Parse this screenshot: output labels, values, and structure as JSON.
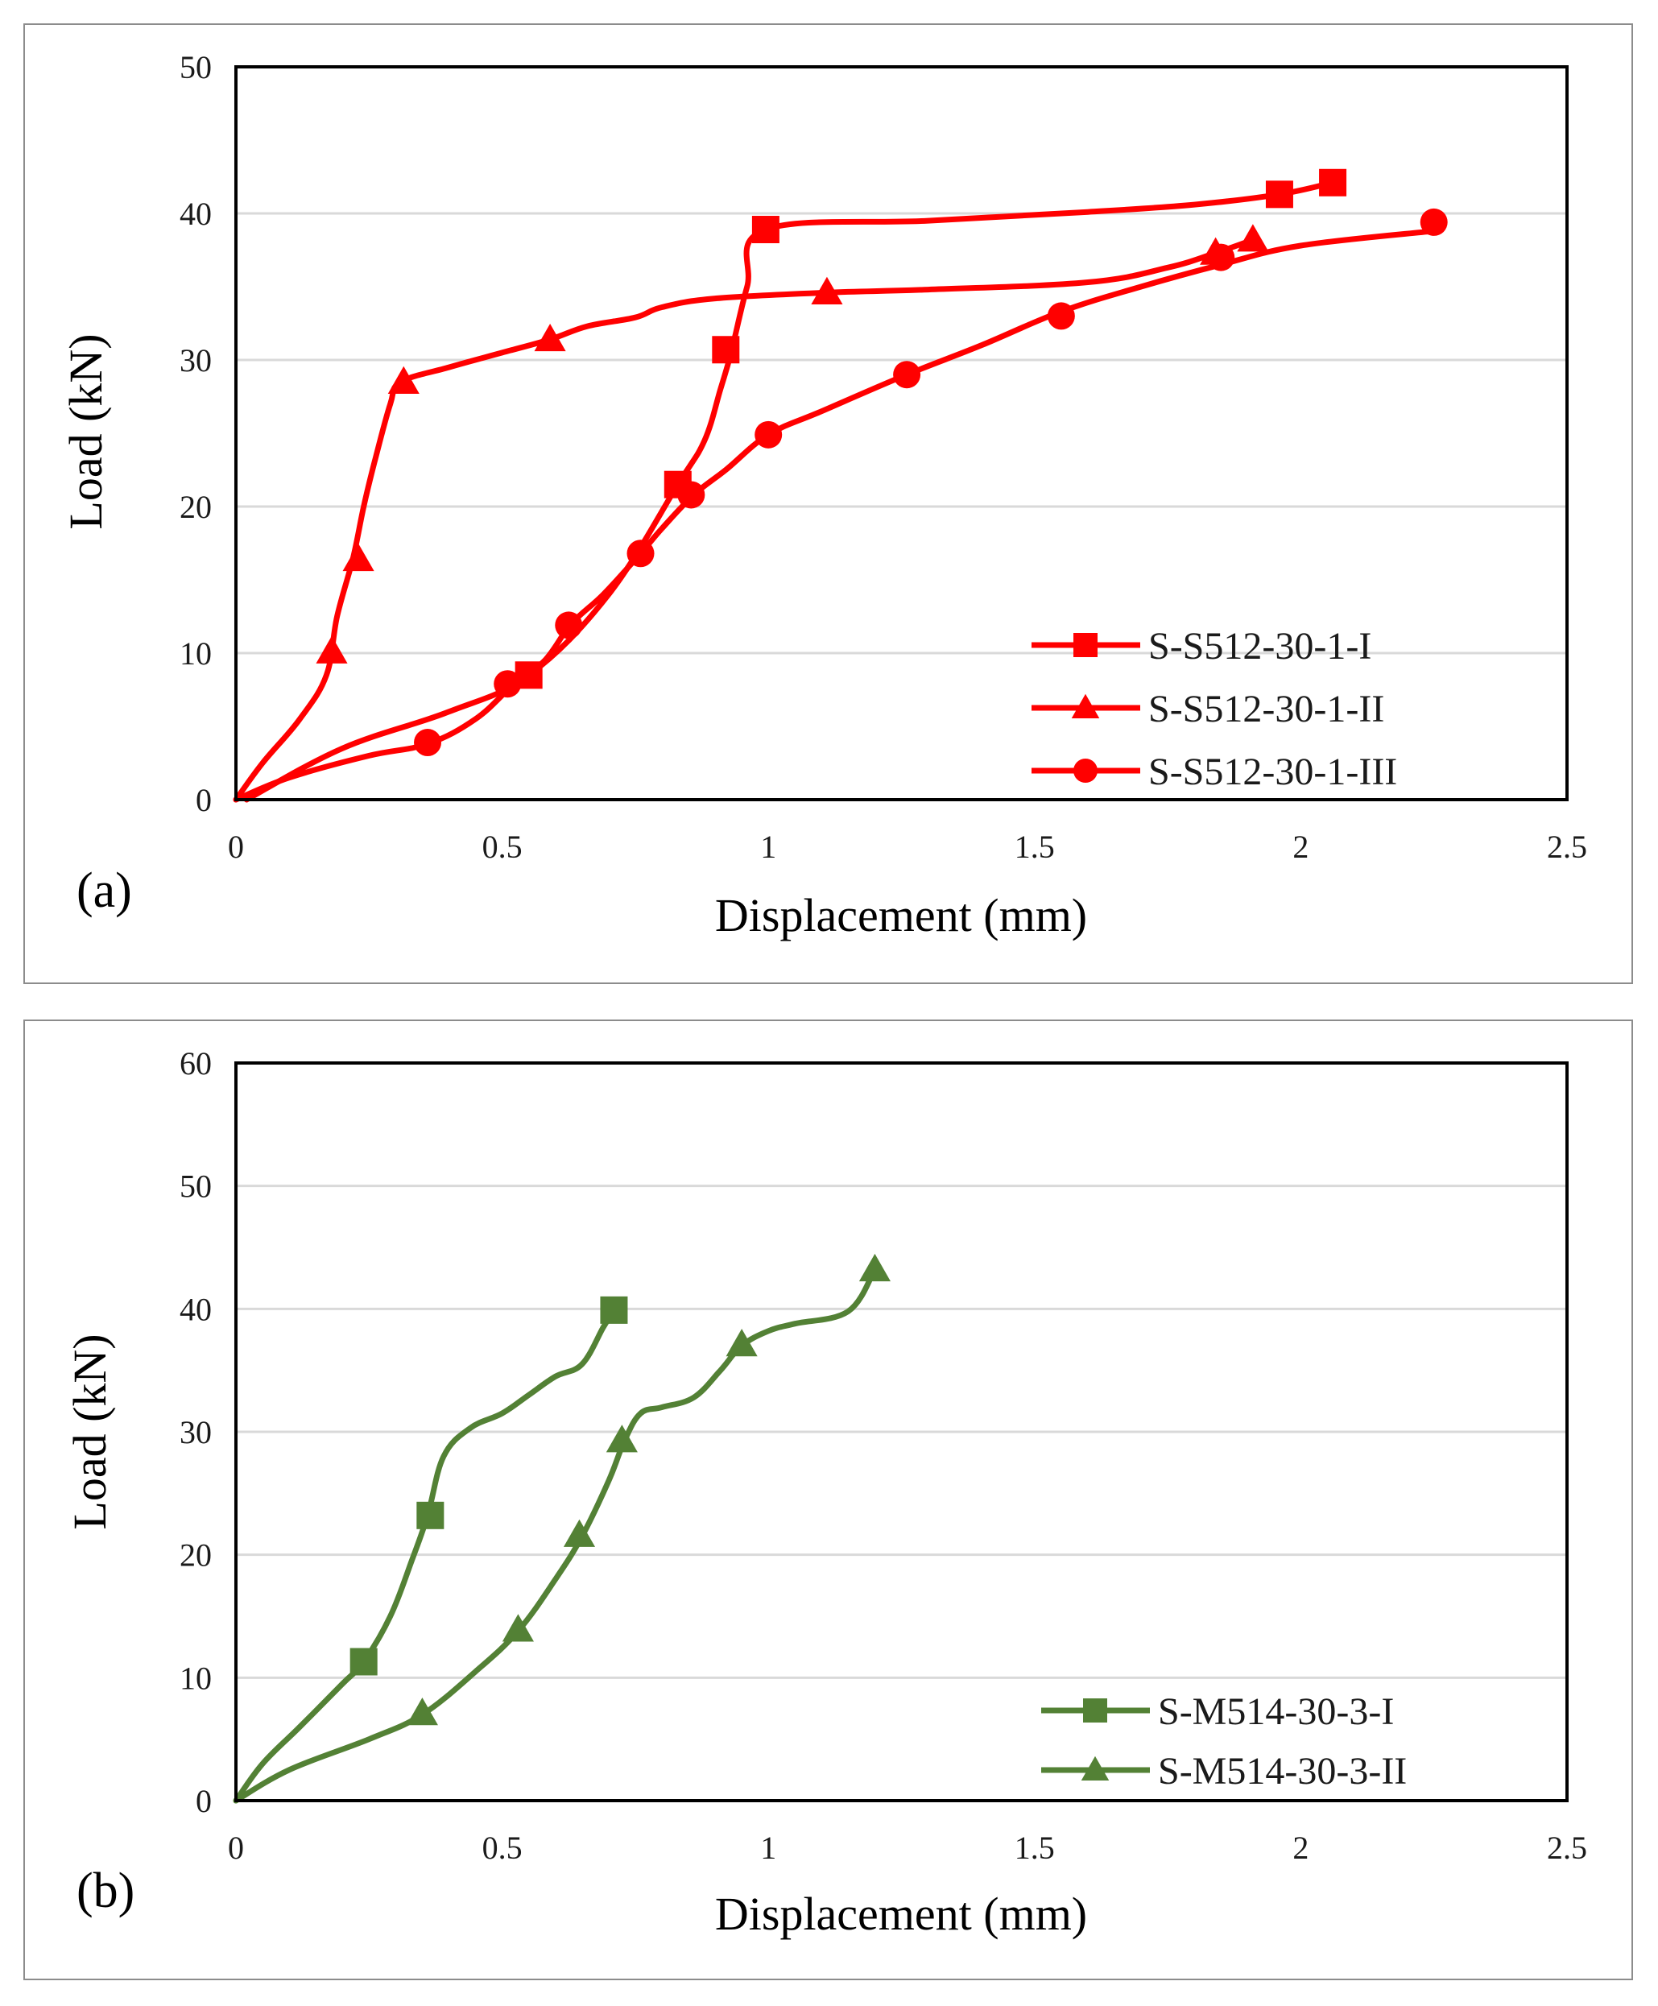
{
  "chart_data": [
    {
      "type": "line",
      "panel_label": "(a)",
      "title": "",
      "xlabel": "Displacement (mm)",
      "ylabel": "Load (kN)",
      "xlim": [
        0,
        2.5
      ],
      "ylim": [
        0,
        50
      ],
      "xticks": [
        "0",
        "0.5",
        "1",
        "1.5",
        "2",
        "2.5"
      ],
      "yticks": [
        "0",
        "10",
        "20",
        "30",
        "40",
        "50"
      ],
      "grid": "horizontal",
      "legend_position": "bottom-right",
      "color": "#ff0000",
      "series": [
        {
          "name": "S-S512-30-1-I",
          "marker": "square",
          "x": [
            0.02,
            0.2,
            0.4,
            0.55,
            0.7,
            0.83,
            0.88,
            0.91,
            0.93,
            0.96,
            0.995,
            1.3,
            1.6,
            1.8,
            1.96,
            2.06
          ],
          "y": [
            0,
            3.5,
            6,
            8.5,
            14,
            21.5,
            24.5,
            28,
            30.5,
            35,
            38.9,
            39.5,
            40.1,
            40.6,
            41.3,
            42.1
          ],
          "markers_x": [
            0.55,
            0.83,
            0.92,
            0.995,
            1.96,
            2.06
          ],
          "markers_y": [
            8.5,
            21.5,
            30.7,
            38.9,
            41.3,
            42.1
          ]
        },
        {
          "name": "S-S512-30-1-II",
          "marker": "triangle",
          "x": [
            0,
            0.05,
            0.12,
            0.17,
            0.19,
            0.22,
            0.24,
            0.26,
            0.29,
            0.31,
            0.4,
            0.5,
            0.59,
            0.66,
            0.75,
            0.8,
            0.9,
            1.11,
            1.3,
            1.6,
            1.75,
            1.84,
            1.91
          ],
          "y": [
            0,
            2.5,
            5.5,
            8.5,
            12.5,
            16.5,
            20,
            23,
            27,
            28.5,
            29.5,
            30.5,
            31.4,
            32.3,
            32.9,
            33.6,
            34.2,
            34.6,
            34.8,
            35.3,
            36.3,
            37.3,
            38.2
          ],
          "markers_x": [
            0.18,
            0.23,
            0.315,
            0.59,
            1.11,
            1.84,
            1.91
          ],
          "markers_y": [
            10.1,
            16.4,
            28.5,
            31.4,
            34.6,
            37.3,
            38.2
          ],
          "marker_legend_only": false
        },
        {
          "name": "S-S512-30-1-III",
          "marker": "circle",
          "x": [
            0,
            0.1,
            0.25,
            0.36,
            0.45,
            0.52,
            0.58,
            0.63,
            0.69,
            0.76,
            0.8,
            0.86,
            0.92,
            1.0,
            1.1,
            1.26,
            1.4,
            1.55,
            1.7,
            1.85,
            2.0,
            2.25
          ],
          "y": [
            0,
            1.5,
            3,
            3.8,
            5.5,
            7.8,
            9.5,
            12,
            14,
            16.8,
            18.5,
            20.8,
            22.5,
            24.9,
            26.5,
            29,
            31,
            33.3,
            35,
            36.5,
            37.8,
            38.8
          ],
          "markers_x": [
            0.36,
            0.51,
            0.625,
            0.76,
            0.855,
            1.0,
            1.26,
            1.55,
            1.85,
            2.25
          ],
          "markers_y": [
            3.9,
            7.9,
            11.9,
            16.8,
            20.8,
            24.9,
            29.0,
            33.0,
            37.0,
            39.4
          ]
        }
      ]
    },
    {
      "type": "line",
      "panel_label": "(b)",
      "title": "",
      "xlabel": "Displacement (mm)",
      "ylabel": "Load (kN)",
      "xlim": [
        0,
        2.5
      ],
      "ylim": [
        0,
        60
      ],
      "xticks": [
        "0",
        "0.5",
        "1",
        "1.5",
        "2",
        "2.5"
      ],
      "yticks": [
        "0",
        "10",
        "20",
        "30",
        "40",
        "50",
        "60"
      ],
      "grid": "horizontal",
      "legend_position": "bottom-right",
      "color": "#538135",
      "series": [
        {
          "name": "S-M514-30-3-I",
          "marker": "square",
          "x": [
            0,
            0.05,
            0.12,
            0.2,
            0.24,
            0.29,
            0.33,
            0.36,
            0.39,
            0.44,
            0.5,
            0.55,
            0.6,
            0.65,
            0.69,
            0.71
          ],
          "y": [
            0,
            3,
            6,
            9.5,
            11.3,
            15,
            19.5,
            23.2,
            28,
            30.3,
            31.5,
            33,
            34.5,
            35.5,
            38.5,
            39.9
          ],
          "markers_x": [
            0.24,
            0.365,
            0.71
          ],
          "markers_y": [
            11.3,
            23.2,
            39.9
          ]
        },
        {
          "name": "S-M514-30-3-II",
          "marker": "triangle",
          "x": [
            0,
            0.1,
            0.25,
            0.35,
            0.45,
            0.53,
            0.6,
            0.65,
            0.7,
            0.73,
            0.76,
            0.8,
            0.86,
            0.91,
            0.95,
            1.0,
            1.05,
            1.15,
            1.2
          ],
          "y": [
            0,
            2.5,
            5,
            7,
            10.5,
            13.8,
            18,
            21.5,
            26,
            29.3,
            31.5,
            32,
            32.8,
            35,
            37,
            38.2,
            38.8,
            39.8,
            43.2
          ],
          "markers_x": [
            0.35,
            0.53,
            0.645,
            0.725,
            0.95,
            1.2
          ],
          "markers_y": [
            7.1,
            13.9,
            21.6,
            29.3,
            37.1,
            43.2
          ]
        }
      ]
    }
  ]
}
